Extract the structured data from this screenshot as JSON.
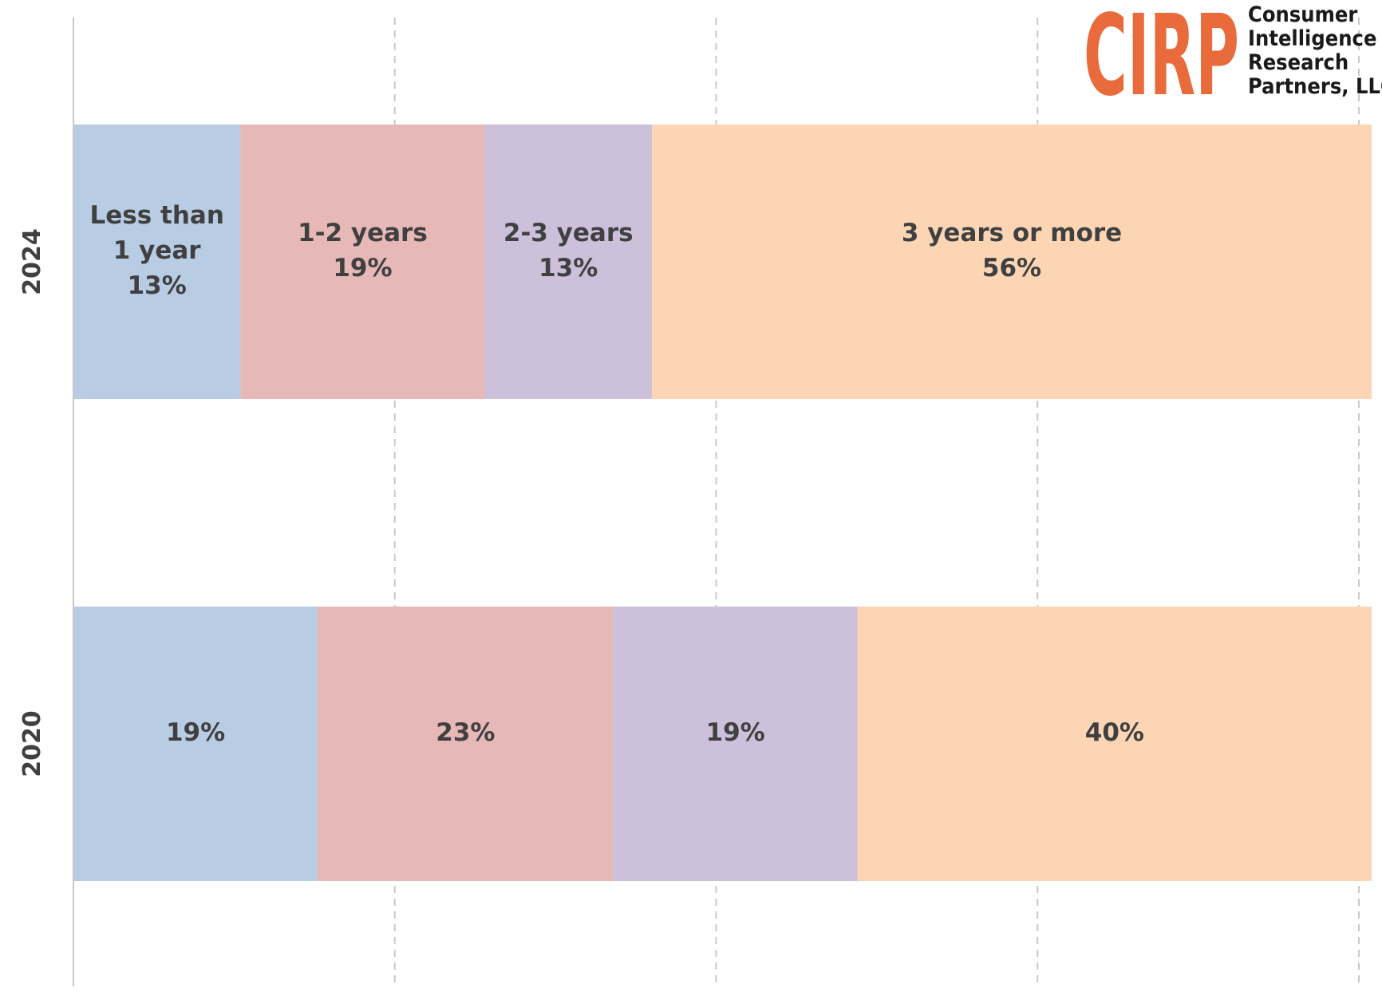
{
  "chart_data": {
    "type": "bar",
    "orientation": "horizontal",
    "stacked": true,
    "categories": [
      "2024",
      "2020"
    ],
    "xlim": [
      0,
      100
    ],
    "grid": "vertical dashed",
    "legend": "none",
    "series": [
      {
        "name": "Less than 1 year",
        "color": "#b8cce4",
        "values": [
          13,
          19
        ]
      },
      {
        "name": "1-2 years",
        "color": "#e6b8b7",
        "values": [
          19,
          23
        ]
      },
      {
        "name": "2-3 years",
        "color": "#ccc0da",
        "values": [
          13,
          19
        ]
      },
      {
        "name": "3 years or more",
        "color": "#fcd5b4",
        "values": [
          56,
          40
        ]
      }
    ],
    "data_labels": [
      [
        "Less than\n1 year\n13%",
        "1-2 years\n19%",
        "2-3 years\n13%",
        "3 years or more\n56%"
      ],
      [
        "19%",
        "23%",
        "19%",
        "40%"
      ]
    ]
  },
  "logo": {
    "mark": "CIRP",
    "name_lines": [
      "Consumer",
      "Intelligence",
      "Research",
      "Partners, LLC"
    ],
    "mark_color": "#e96b3b"
  }
}
